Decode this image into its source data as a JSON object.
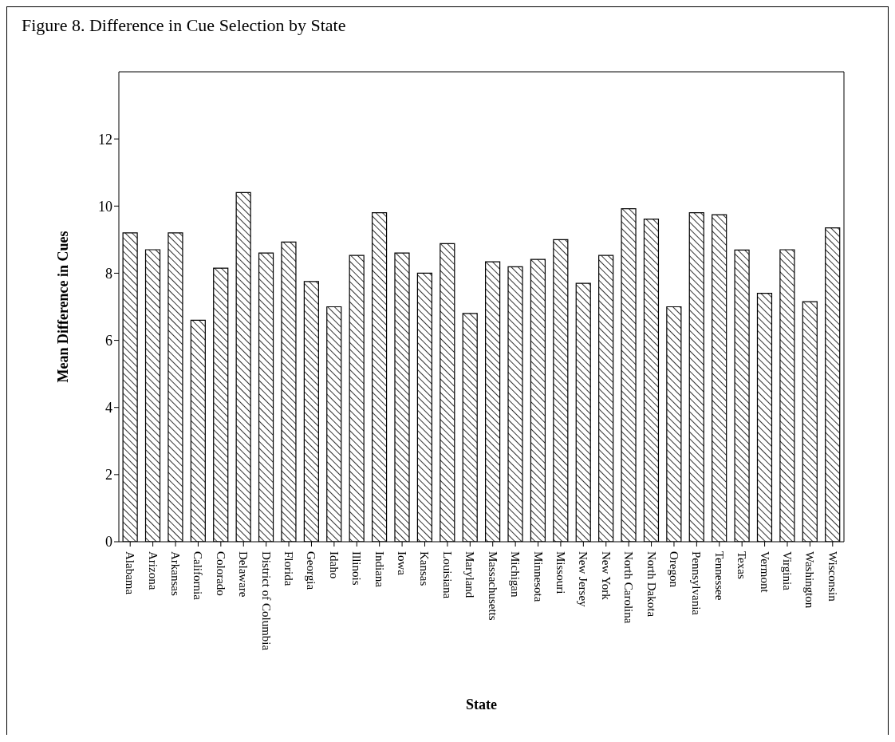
{
  "chart_data": {
    "type": "bar",
    "title": "Figure 8. Difference in Cue Selection by State",
    "xlabel": "State",
    "ylabel": "Mean Difference in Cues",
    "categories": [
      "Alabama",
      "Arizona",
      "Arkansas",
      "California",
      "Colorado",
      "Delaware",
      "District of Columbia",
      "Florida",
      "Georgia",
      "Idaho",
      "Illinois",
      "Indiana",
      "Iowa",
      "Kansas",
      "Louisiana",
      "Maryland",
      "Massachusetts",
      "Michigan",
      "Minnesota",
      "Missouri",
      "New Jersey",
      "New York",
      "North Carolina",
      "North Dakota",
      "Oregon",
      "Pennsylvania",
      "Tennessee",
      "Texas",
      "Vermont",
      "Virginia",
      "Washington",
      "Wisconsin"
    ],
    "values": [
      9.2,
      8.7,
      9.2,
      6.6,
      8.15,
      10.4,
      8.6,
      8.93,
      7.75,
      7.0,
      8.53,
      9.8,
      8.6,
      8.0,
      8.88,
      6.8,
      8.34,
      8.19,
      8.41,
      9.0,
      7.7,
      8.53,
      9.92,
      9.61,
      7.0,
      9.8,
      9.74,
      8.69,
      7.4,
      8.7,
      7.15,
      9.35
    ],
    "color": "#000000",
    "ylim": [
      0,
      14
    ],
    "yticks": [
      0,
      2,
      4,
      6,
      8,
      10,
      12
    ],
    "grid": false
  }
}
